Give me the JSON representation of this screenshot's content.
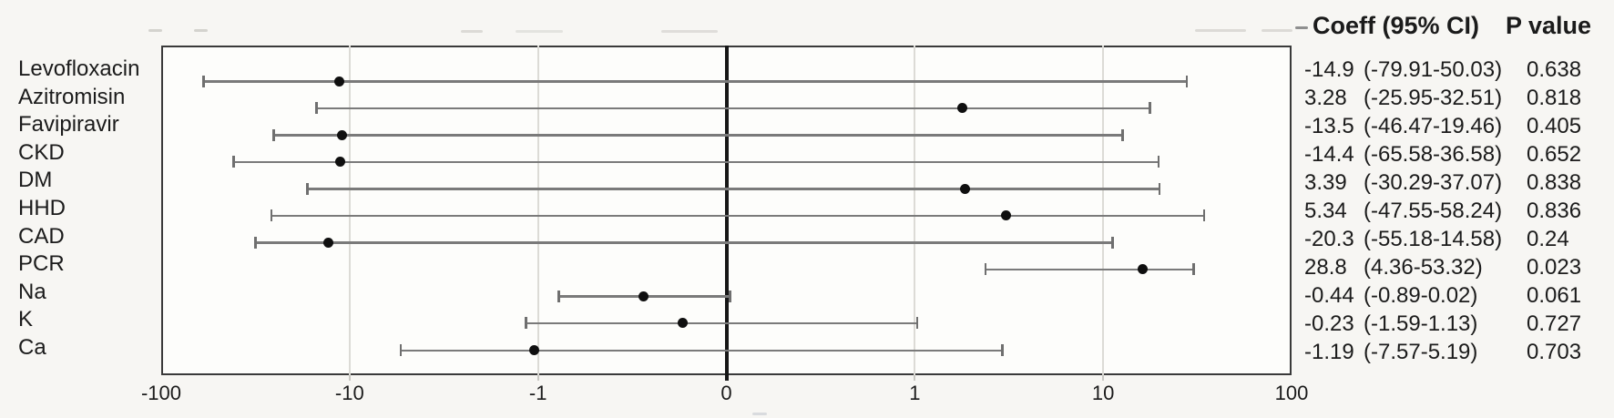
{
  "chart_data": {
    "type": "forest",
    "title": "",
    "xlabel": "",
    "ylabel": "",
    "x_axis": {
      "scale": "symmetric log (piecewise linear between decade ticks)",
      "ticks": [
        -100,
        -10,
        -1,
        0,
        1,
        10,
        100
      ],
      "tick_labels": [
        "-100",
        "-10",
        "-1",
        "0",
        "1",
        "10",
        "100"
      ],
      "gridline_ticks": [
        -10,
        -1,
        1,
        10
      ],
      "zero_reference_line": true
    },
    "legend_position": "none",
    "column_headers": [
      "Coeff (95% CI)",
      "P value"
    ],
    "rows": [
      {
        "label": "Levofloxacin",
        "coeff": -14.9,
        "ci_low": -79.91,
        "ci_high": 50.03,
        "coeff_text": "-14.9",
        "ci_text": "(-79.91-50.03)",
        "p_value": "0.638"
      },
      {
        "label": "Azitromisin",
        "coeff": 3.28,
        "ci_low": -25.95,
        "ci_high": 32.51,
        "coeff_text": "3.28",
        "ci_text": "(-25.95-32.51)",
        "p_value": "0.818"
      },
      {
        "label": "Favipiravir",
        "coeff": -13.5,
        "ci_low": -46.47,
        "ci_high": 19.46,
        "coeff_text": "-13.5",
        "ci_text": "(-46.47-19.46)",
        "p_value": "0.405"
      },
      {
        "label": "CKD",
        "coeff": -14.4,
        "ci_low": -65.58,
        "ci_high": 36.58,
        "coeff_text": "-14.4",
        "ci_text": "(-65.58-36.58)",
        "p_value": "0.652"
      },
      {
        "label": "DM",
        "coeff": 3.39,
        "ci_low": -30.29,
        "ci_high": 37.07,
        "coeff_text": "3.39",
        "ci_text": "(-30.29-37.07)",
        "p_value": "0.838"
      },
      {
        "label": "HHD",
        "coeff": 5.34,
        "ci_low": -47.55,
        "ci_high": 58.24,
        "coeff_text": "5.34",
        "ci_text": "(-47.55-58.24)",
        "p_value": "0.836"
      },
      {
        "label": "CAD",
        "coeff": -20.3,
        "ci_low": -55.18,
        "ci_high": 14.58,
        "coeff_text": "-20.3",
        "ci_text": "(-55.18-14.58)",
        "p_value": "0.24"
      },
      {
        "label": "PCR",
        "coeff": 28.8,
        "ci_low": 4.36,
        "ci_high": 53.32,
        "coeff_text": "28.8",
        "ci_text": "(4.36-53.32)",
        "p_value": "0.023"
      },
      {
        "label": "Na",
        "coeff": -0.44,
        "ci_low": -0.89,
        "ci_high": 0.02,
        "coeff_text": "-0.44",
        "ci_text": "(-0.89-0.02)",
        "p_value": "0.061"
      },
      {
        "label": "K",
        "coeff": -0.23,
        "ci_low": -1.59,
        "ci_high": 1.13,
        "coeff_text": "-0.23",
        "ci_text": "(-1.59-1.13)",
        "p_value": "0.727"
      },
      {
        "label": "Ca",
        "coeff": -1.19,
        "ci_low": -7.57,
        "ci_high": 5.19,
        "coeff_text": "-1.19",
        "ci_text": "(-7.57-5.19)",
        "p_value": "0.703"
      }
    ]
  },
  "colors": {
    "background": "#f7f6f3",
    "plot_background": "#fdfdfb",
    "border": "#3a3a3a",
    "grid": "#dcdbd6",
    "zero_line": "#161616",
    "ci_line": "#7a7a7a",
    "marker": "#0f0f0f",
    "text": "#1b1b1b"
  }
}
